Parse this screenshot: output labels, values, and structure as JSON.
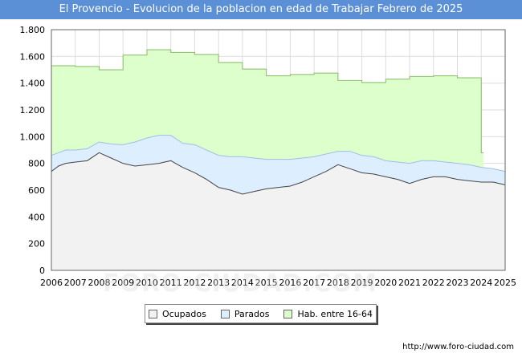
{
  "title": "El Provencio - Evolucion de la poblacion en edad de Trabajar Febrero de 2025",
  "source": "http://www.foro-ciudad.com",
  "watermark": "FORO-CIUDAD.COM",
  "chart_data": {
    "type": "area",
    "title": "El Provencio - Evolucion de la poblacion en edad de Trabajar Febrero de 2025",
    "x_range": [
      2006,
      2025
    ],
    "ylim": [
      0,
      1800
    ],
    "y_ticks": [
      0,
      200,
      400,
      600,
      800,
      1000,
      1200,
      1400,
      1600,
      1800
    ],
    "y_tick_labels": [
      "0",
      "200",
      "400",
      "600",
      "800",
      "1.000",
      "1.200",
      "1.400",
      "1.600",
      "1.800"
    ],
    "x_ticks": [
      2006,
      2007,
      2008,
      2009,
      2010,
      2011,
      2012,
      2013,
      2014,
      2015,
      2016,
      2017,
      2018,
      2019,
      2020,
      2021,
      2022,
      2023,
      2024,
      2025
    ],
    "x_tick_labels": [
      "2006",
      "2007",
      "2008",
      "2009",
      "2010",
      "2011",
      "2012",
      "2013",
      "2014",
      "2015",
      "2016",
      "2017",
      "2018",
      "2019",
      "2020",
      "2021",
      "2022",
      "2023",
      "2024",
      "2025"
    ],
    "grid": true,
    "legend_position": "bottom-center",
    "colors": {
      "ocupados": "#f2f2f2",
      "parados": "#ddeeff",
      "hab": "#ddffcc",
      "line": "#444444",
      "plot_border": "#666666",
      "grid": "#dddddd"
    },
    "series": [
      {
        "name": "Hab. entre 16-64",
        "type": "step",
        "x": [
          2006,
          2007,
          2008,
          2009,
          2010,
          2011,
          2012,
          2013,
          2014,
          2015,
          2016,
          2017,
          2018,
          2019,
          2020,
          2021,
          2022,
          2023,
          2024
        ],
        "values": [
          1530,
          1525,
          1500,
          1610,
          1650,
          1630,
          1615,
          1555,
          1505,
          1455,
          1465,
          1475,
          1420,
          1405,
          1430,
          1450,
          1455,
          1440,
          880
        ]
      },
      {
        "name": "Parados",
        "x": [
          2006.0,
          2006.3,
          2006.6,
          2007.0,
          2007.5,
          2008.0,
          2008.5,
          2009.0,
          2009.5,
          2010.0,
          2010.5,
          2011.0,
          2011.5,
          2012.0,
          2012.5,
          2013.0,
          2013.5,
          2014.0,
          2014.5,
          2015.0,
          2015.5,
          2016.0,
          2016.5,
          2017.0,
          2017.5,
          2018.0,
          2018.5,
          2019.0,
          2019.5,
          2020.0,
          2020.5,
          2021.0,
          2021.5,
          2022.0,
          2022.5,
          2023.0,
          2023.5,
          2024.0,
          2024.5,
          2025.0
        ],
        "values": [
          860,
          880,
          900,
          900,
          910,
          960,
          945,
          940,
          960,
          990,
          1010,
          1010,
          950,
          940,
          900,
          860,
          850,
          850,
          840,
          830,
          830,
          830,
          840,
          850,
          870,
          890,
          890,
          860,
          850,
          820,
          810,
          800,
          820,
          820,
          810,
          800,
          790,
          770,
          760,
          740
        ]
      },
      {
        "name": "Ocupados",
        "x": [
          2006.0,
          2006.3,
          2006.6,
          2007.0,
          2007.5,
          2008.0,
          2008.5,
          2009.0,
          2009.5,
          2010.0,
          2010.5,
          2011.0,
          2011.5,
          2012.0,
          2012.5,
          2013.0,
          2013.5,
          2014.0,
          2014.5,
          2015.0,
          2015.5,
          2016.0,
          2016.5,
          2017.0,
          2017.5,
          2018.0,
          2018.5,
          2019.0,
          2019.5,
          2020.0,
          2020.5,
          2021.0,
          2021.5,
          2022.0,
          2022.5,
          2023.0,
          2023.5,
          2024.0,
          2024.5,
          2025.0
        ],
        "values": [
          740,
          780,
          800,
          810,
          820,
          880,
          840,
          800,
          780,
          790,
          800,
          820,
          770,
          730,
          680,
          620,
          600,
          570,
          590,
          610,
          620,
          630,
          660,
          700,
          740,
          790,
          760,
          730,
          720,
          700,
          680,
          650,
          680,
          700,
          700,
          680,
          670,
          660,
          660,
          640
        ]
      }
    ]
  },
  "legend": {
    "items": [
      {
        "label": "Ocupados",
        "color": "#f2f2f2"
      },
      {
        "label": "Parados",
        "color": "#ddeeff"
      },
      {
        "label": "Hab. entre 16-64",
        "color": "#ddffcc"
      }
    ]
  }
}
